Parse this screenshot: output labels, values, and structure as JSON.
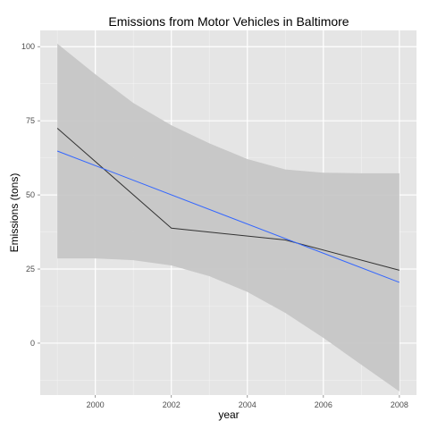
{
  "chart_data": {
    "type": "line",
    "title": "Emissions from Motor Vehicles in Baltimore",
    "xlabel": "year",
    "ylabel": "Emissions (tons)",
    "xlim": [
      1998.55,
      2008.45
    ],
    "ylim": [
      -17.5,
      105.5
    ],
    "x_ticks": [
      2000,
      2002,
      2004,
      2006,
      2008
    ],
    "y_ticks": [
      0,
      25,
      50,
      75,
      100
    ],
    "grid": true,
    "series": [
      {
        "kind": "observed",
        "x": [
          1999,
          2002,
          2005,
          2008
        ],
        "values": [
          72.5,
          38.8,
          34.8,
          24.6
        ]
      },
      {
        "kind": "linear-fit",
        "x": [
          1999,
          2008
        ],
        "values": [
          64.8,
          20.5
        ]
      }
    ],
    "confidence_band": {
      "x": [
        1999,
        2000,
        2001,
        2002,
        2003,
        2004,
        2005,
        2006,
        2007,
        2008
      ],
      "lower": [
        28.6,
        28.6,
        28.0,
        26.2,
        22.6,
        17.3,
        10.2,
        1.8,
        -7.3,
        -16.3
      ],
      "upper": [
        101.0,
        90.7,
        81.0,
        73.5,
        67.4,
        62.1,
        58.6,
        57.5,
        57.3,
        57.3
      ]
    },
    "colors": {
      "panel": "#e5e5e5",
      "grid_major": "#ffffff",
      "grid_minor": "#f2f2f2",
      "band": "#c4c4c4",
      "observed_line": "#333333",
      "fit_line": "#3366ff"
    }
  }
}
